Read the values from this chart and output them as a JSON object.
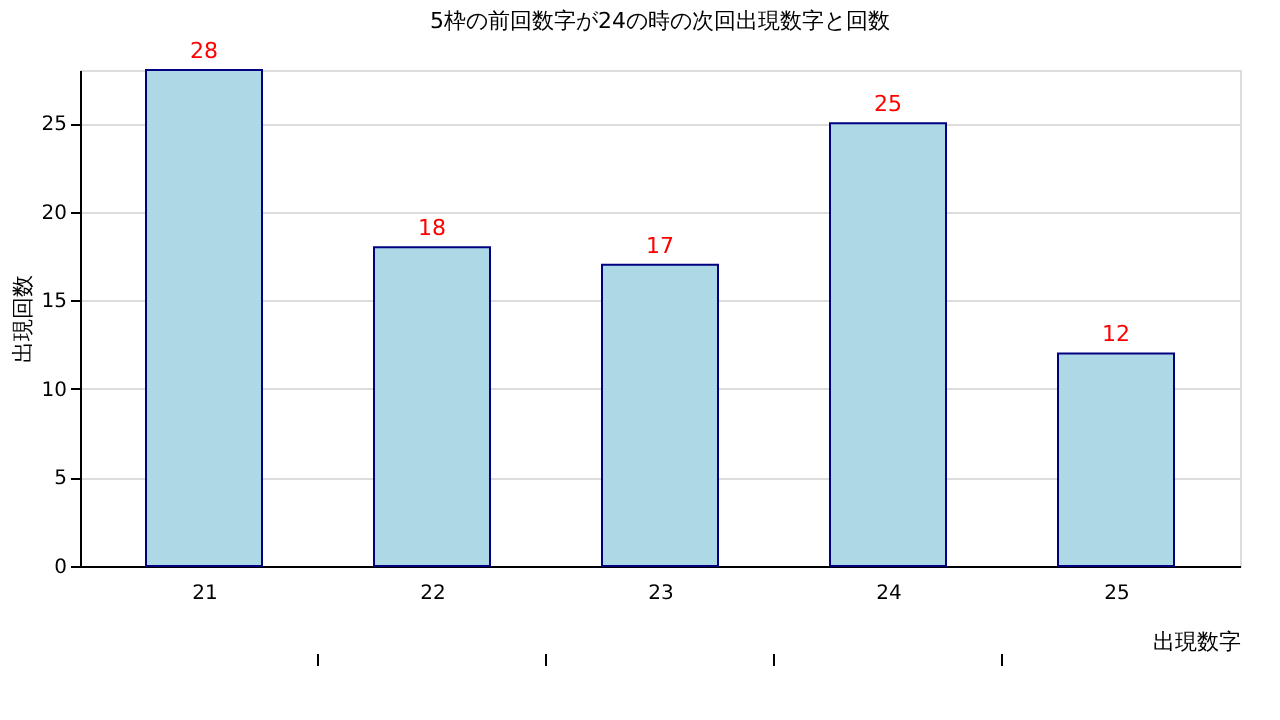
{
  "chart_data": {
    "type": "bar",
    "title": "5枠の前回数字が24の時の次回出現数字と回数",
    "xlabel": "出現数字",
    "ylabel": "出現回数",
    "categories": [
      "21",
      "22",
      "23",
      "24",
      "25"
    ],
    "values": [
      28,
      18,
      17,
      25,
      12
    ],
    "color": "#add8e6",
    "ylim": [
      0,
      28
    ],
    "yticks": [
      0,
      5,
      10,
      15,
      20,
      25
    ],
    "grid": "y",
    "data_labels": true
  }
}
